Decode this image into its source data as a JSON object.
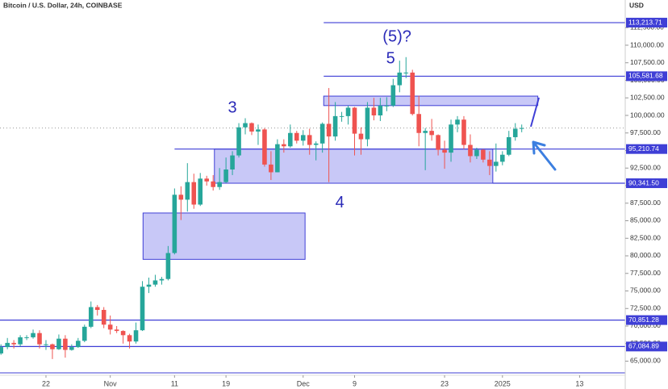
{
  "chart_data": {
    "type": "candlestick",
    "title": "Bitcoin / U.S. Dollar, 24h, COINBASE",
    "y_axis_label": "USD",
    "up_color": "#26a69a",
    "down_color": "#ef5350",
    "level_color": "#3f3fd6",
    "zone_color": "#9b9bf0",
    "x": [
      0,
      1,
      2,
      3,
      4,
      5,
      6,
      7,
      8,
      9,
      10,
      11,
      12,
      13,
      14,
      15,
      16,
      17,
      18,
      19,
      20,
      21,
      22,
      23,
      24,
      25,
      26,
      27,
      28,
      29,
      30,
      31,
      32,
      33,
      34,
      35,
      36,
      37,
      38,
      39,
      40,
      41,
      42,
      43,
      44,
      45,
      46,
      47,
      48,
      49,
      50,
      51,
      52,
      53,
      54,
      55,
      56,
      57,
      58,
      59,
      60,
      61,
      62,
      63,
      64,
      65,
      66,
      67,
      68,
      69,
      70,
      71,
      72,
      73,
      74,
      75,
      76,
      77,
      78,
      79,
      80,
      81
    ],
    "opens": [
      66100,
      67000,
      67600,
      67400,
      68400,
      68400,
      69000,
      67400,
      67400,
      66700,
      68200,
      66600,
      67000,
      67900,
      69900,
      72700,
      72300,
      70200,
      69500,
      69300,
      68700,
      67800,
      69400,
      75600,
      75900,
      76500,
      76700,
      80400,
      88700,
      88000,
      90500,
      87300,
      91000,
      90600,
      89800,
      90500,
      92300,
      94300,
      98300,
      98900,
      97700,
      98000,
      93000,
      91900,
      95900,
      95600,
      97500,
      96400,
      97200,
      95800,
      96000,
      98800,
      97000,
      99900,
      99900,
      101100,
      97400,
      96600,
      101100,
      100000,
      101400,
      101400,
      104300,
      106100,
      106100,
      100200,
      97500,
      97800,
      97200,
      95100,
      94700,
      98700,
      99400,
      95800,
      94200,
      95100,
      93700,
      92800,
      93400,
      94400,
      96900,
      98100
    ],
    "highs": [
      67400,
      68300,
      68000,
      68700,
      68700,
      69500,
      69400,
      68000,
      67500,
      68800,
      68700,
      67400,
      68300,
      70200,
      73500,
      73000,
      72700,
      71500,
      70000,
      69400,
      68900,
      70500,
      76400,
      76900,
      77300,
      77000,
      81400,
      89600,
      89900,
      93200,
      91700,
      91800,
      91400,
      91500,
      92500,
      94000,
      94900,
      98900,
      99600,
      99000,
      98700,
      98200,
      94900,
      96600,
      96600,
      98700,
      97800,
      97900,
      98100,
      96300,
      99000,
      103900,
      101900,
      100500,
      101400,
      101200,
      98300,
      101900,
      102500,
      102500,
      102600,
      105200,
      107800,
      108300,
      106500,
      102800,
      98200,
      99500,
      97300,
      96400,
      99400,
      99900,
      99900,
      97300,
      95400,
      95200,
      94900,
      96000,
      94900,
      97800,
      98900,
      98700
    ],
    "lows": [
      65900,
      66700,
      66800,
      67100,
      68000,
      68200,
      66800,
      66600,
      65300,
      66600,
      65500,
      66500,
      66900,
      67700,
      69700,
      71500,
      69700,
      68800,
      69000,
      67500,
      66800,
      67500,
      69300,
      74700,
      75600,
      75900,
      76500,
      80200,
      85100,
      86300,
      86700,
      87100,
      90000,
      89300,
      89400,
      90400,
      91500,
      94000,
      97300,
      97200,
      95800,
      92700,
      90800,
      91900,
      94700,
      95400,
      96000,
      95700,
      94400,
      93600,
      94700,
      90500,
      96400,
      99100,
      98700,
      94300,
      94400,
      95600,
      99300,
      99200,
      100600,
      101200,
      103300,
      105300,
      100000,
      95600,
      92200,
      96400,
      94300,
      92400,
      93400,
      97600,
      95200,
      93300,
      93800,
      93300,
      91500,
      92000,
      92900,
      94200,
      96400,
      97600
    ],
    "closes": [
      67000,
      67600,
      67400,
      68400,
      68400,
      69000,
      67400,
      67400,
      66700,
      68200,
      66600,
      67000,
      67900,
      69900,
      72700,
      72300,
      70200,
      69500,
      69300,
      68700,
      67800,
      69400,
      75600,
      75900,
      76500,
      76700,
      80400,
      88700,
      88000,
      90500,
      87300,
      91000,
      90600,
      89800,
      90500,
      92300,
      94300,
      98300,
      98900,
      97700,
      98000,
      93000,
      91900,
      95900,
      95600,
      97500,
      96400,
      97200,
      95800,
      96000,
      98800,
      97000,
      99900,
      99900,
      101100,
      97400,
      96600,
      101100,
      100000,
      101400,
      101400,
      104300,
      106100,
      106100,
      100200,
      97500,
      97800,
      97200,
      95100,
      94700,
      98700,
      99400,
      95800,
      94200,
      95100,
      93700,
      92800,
      93400,
      94400,
      96900,
      98100,
      98200
    ],
    "xlim": [
      -0.15,
      97.1
    ],
    "xticks": [
      {
        "value": 7,
        "label": "22"
      },
      {
        "value": 17,
        "label": "Nov"
      },
      {
        "value": 27,
        "label": "11"
      },
      {
        "value": 35,
        "label": "19"
      },
      {
        "value": 47,
        "label": "Dec"
      },
      {
        "value": 55,
        "label": "9"
      },
      {
        "value": 69,
        "label": "23"
      },
      {
        "value": 78,
        "label": "2025"
      },
      {
        "value": 90,
        "label": "13"
      }
    ],
    "ylim": [
      63333,
      116437
    ],
    "yticks": [
      {
        "value": 65000,
        "label": "65,000.00"
      },
      {
        "value": 67500,
        "label": "67,500.00"
      },
      {
        "value": 70000,
        "label": "70,000.00"
      },
      {
        "value": 72500,
        "label": "72,500.00"
      },
      {
        "value": 75000,
        "label": "75,000.00"
      },
      {
        "value": 77500,
        "label": "77,500.00"
      },
      {
        "value": 80000,
        "label": "80,000.00"
      },
      {
        "value": 82500,
        "label": "82,500.00"
      },
      {
        "value": 85000,
        "label": "85,000.00"
      },
      {
        "value": 87500,
        "label": "87,500.00"
      },
      {
        "value": 90000,
        "label": "90,000.00"
      },
      {
        "value": 92500,
        "label": "92,500.00"
      },
      {
        "value": 95000,
        "label": "95,000.00"
      },
      {
        "value": 97500,
        "label": "97,500.00"
      },
      {
        "value": 100000,
        "label": "100,000.00"
      },
      {
        "value": 102500,
        "label": "102,500.00"
      },
      {
        "value": 105000,
        "label": "105,000.00"
      },
      {
        "value": 107500,
        "label": "107,500.00"
      },
      {
        "value": 110000,
        "label": "110,000.00"
      },
      {
        "value": 112500,
        "label": "112,500.00"
      }
    ],
    "levels": [
      {
        "value": 113213.71,
        "label": "113,213.71",
        "x_start": 50.2
      },
      {
        "value": 105581.68,
        "label": "105,581.68",
        "x_start": 50.2
      },
      {
        "value": 95210.74,
        "label": "95,210.74",
        "x_start": 27
      },
      {
        "value": 90341.5,
        "label": "90,341.50",
        "x_start": 76.5
      },
      {
        "value": 70851.28,
        "label": "70,851.28",
        "x_start": -0.15
      },
      {
        "value": 67084.89,
        "label": "67,084.89",
        "x_start": -0.15
      }
    ],
    "zones": [
      {
        "x": [
          22.1,
          47.3
        ],
        "y": [
          79500,
          86100
        ]
      },
      {
        "x": [
          33.2,
          76.5
        ],
        "y": [
          90341.5,
          95210.74
        ]
      },
      {
        "x": [
          50.2,
          83.5
        ],
        "y": [
          101400,
          102750
        ]
      }
    ],
    "annotations": [
      {
        "text": "3",
        "x": 36,
        "y": 101000
      },
      {
        "text": "4",
        "x": 52.7,
        "y": 87500
      },
      {
        "text": "5",
        "x": 60.6,
        "y": 108000
      },
      {
        "text": "(5)?",
        "x": 61.6,
        "y": 111100
      }
    ]
  }
}
